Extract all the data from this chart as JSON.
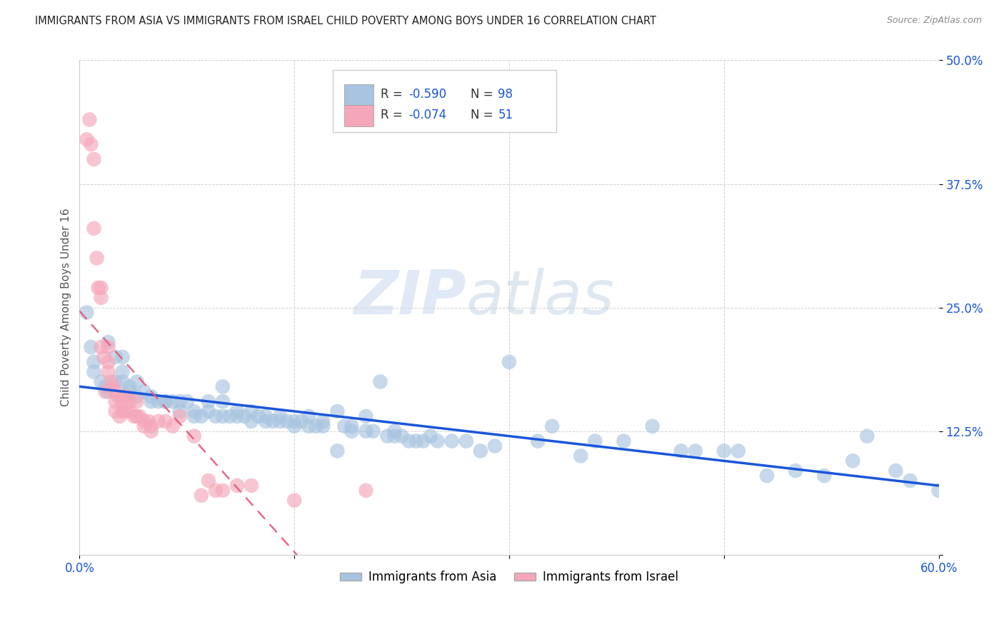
{
  "title": "IMMIGRANTS FROM ASIA VS IMMIGRANTS FROM ISRAEL CHILD POVERTY AMONG BOYS UNDER 16 CORRELATION CHART",
  "source": "Source: ZipAtlas.com",
  "ylabel": "Child Poverty Among Boys Under 16",
  "xlim": [
    0.0,
    0.6
  ],
  "ylim": [
    0.0,
    0.5
  ],
  "yticks": [
    0.0,
    0.125,
    0.25,
    0.375,
    0.5
  ],
  "ytick_labels": [
    "",
    "12.5%",
    "25.0%",
    "37.5%",
    "50.0%"
  ],
  "xtick_labels": [
    "0.0%",
    "",
    "",
    "",
    "60.0%"
  ],
  "asia_R": -0.59,
  "asia_N": 98,
  "israel_R": -0.074,
  "israel_N": 51,
  "asia_color": "#a8c4e0",
  "israel_color": "#f4a7b9",
  "asia_line_color": "#1a56db",
  "israel_line_color": "#e8587a",
  "watermark_zip": "ZIP",
  "watermark_atlas": "atlas",
  "legend_label_asia": "Immigrants from Asia",
  "legend_label_israel": "Immigrants from Israel",
  "asia_scatter_x": [
    0.005,
    0.008,
    0.01,
    0.01,
    0.015,
    0.018,
    0.02,
    0.02,
    0.025,
    0.025,
    0.03,
    0.03,
    0.03,
    0.035,
    0.035,
    0.04,
    0.04,
    0.045,
    0.05,
    0.05,
    0.055,
    0.06,
    0.06,
    0.065,
    0.07,
    0.07,
    0.075,
    0.08,
    0.08,
    0.085,
    0.09,
    0.09,
    0.095,
    0.1,
    0.1,
    0.1,
    0.105,
    0.11,
    0.11,
    0.115,
    0.12,
    0.12,
    0.125,
    0.13,
    0.13,
    0.135,
    0.14,
    0.14,
    0.145,
    0.15,
    0.15,
    0.155,
    0.16,
    0.16,
    0.165,
    0.17,
    0.17,
    0.18,
    0.18,
    0.185,
    0.19,
    0.19,
    0.2,
    0.2,
    0.205,
    0.21,
    0.215,
    0.22,
    0.22,
    0.225,
    0.23,
    0.235,
    0.24,
    0.245,
    0.25,
    0.26,
    0.27,
    0.28,
    0.29,
    0.3,
    0.32,
    0.33,
    0.35,
    0.36,
    0.38,
    0.4,
    0.42,
    0.43,
    0.45,
    0.46,
    0.48,
    0.5,
    0.52,
    0.54,
    0.55,
    0.57,
    0.58,
    0.6
  ],
  "asia_scatter_y": [
    0.245,
    0.21,
    0.195,
    0.185,
    0.175,
    0.17,
    0.215,
    0.165,
    0.2,
    0.175,
    0.2,
    0.185,
    0.175,
    0.17,
    0.165,
    0.175,
    0.16,
    0.165,
    0.16,
    0.155,
    0.155,
    0.155,
    0.155,
    0.155,
    0.155,
    0.145,
    0.155,
    0.145,
    0.14,
    0.14,
    0.155,
    0.145,
    0.14,
    0.17,
    0.155,
    0.14,
    0.14,
    0.145,
    0.14,
    0.14,
    0.145,
    0.135,
    0.14,
    0.14,
    0.135,
    0.135,
    0.14,
    0.135,
    0.135,
    0.135,
    0.13,
    0.135,
    0.14,
    0.13,
    0.13,
    0.135,
    0.13,
    0.145,
    0.105,
    0.13,
    0.13,
    0.125,
    0.14,
    0.125,
    0.125,
    0.175,
    0.12,
    0.125,
    0.12,
    0.12,
    0.115,
    0.115,
    0.115,
    0.12,
    0.115,
    0.115,
    0.115,
    0.105,
    0.11,
    0.195,
    0.115,
    0.13,
    0.1,
    0.115,
    0.115,
    0.13,
    0.105,
    0.105,
    0.105,
    0.105,
    0.08,
    0.085,
    0.08,
    0.095,
    0.12,
    0.085,
    0.075,
    0.065
  ],
  "israel_scatter_x": [
    0.005,
    0.007,
    0.008,
    0.01,
    0.01,
    0.012,
    0.013,
    0.015,
    0.015,
    0.015,
    0.017,
    0.018,
    0.02,
    0.02,
    0.02,
    0.022,
    0.023,
    0.025,
    0.025,
    0.025,
    0.027,
    0.028,
    0.03,
    0.03,
    0.03,
    0.032,
    0.033,
    0.035,
    0.035,
    0.038,
    0.04,
    0.04,
    0.042,
    0.045,
    0.045,
    0.048,
    0.05,
    0.05,
    0.055,
    0.06,
    0.065,
    0.07,
    0.08,
    0.085,
    0.09,
    0.095,
    0.1,
    0.11,
    0.12,
    0.15,
    0.2
  ],
  "israel_scatter_y": [
    0.42,
    0.44,
    0.415,
    0.4,
    0.33,
    0.3,
    0.27,
    0.27,
    0.26,
    0.21,
    0.2,
    0.165,
    0.21,
    0.195,
    0.185,
    0.175,
    0.17,
    0.165,
    0.155,
    0.145,
    0.16,
    0.14,
    0.16,
    0.155,
    0.145,
    0.145,
    0.16,
    0.155,
    0.145,
    0.14,
    0.155,
    0.14,
    0.14,
    0.13,
    0.135,
    0.135,
    0.13,
    0.125,
    0.135,
    0.135,
    0.13,
    0.14,
    0.12,
    0.06,
    0.075,
    0.065,
    0.065,
    0.07,
    0.07,
    0.055,
    0.065
  ],
  "background_color": "#ffffff",
  "grid_color": "#cccccc"
}
